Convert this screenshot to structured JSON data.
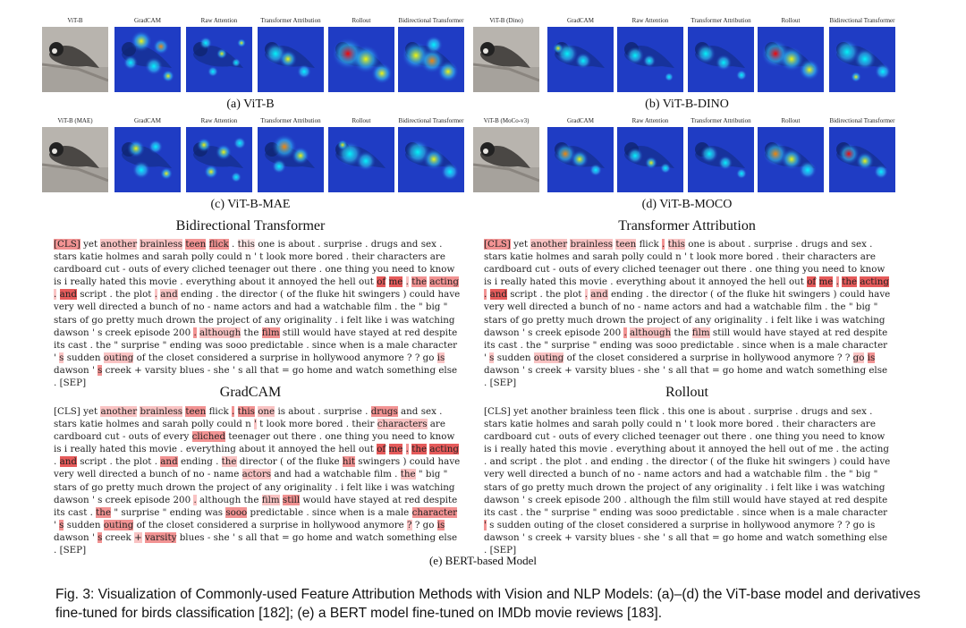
{
  "vision": {
    "vit_b": {
      "titles": [
        "ViT-B",
        "GradCAM",
        "Raw Attention",
        "Transformer Attribution",
        "Rollout",
        "Bidirectional Transformer"
      ],
      "caption": "(a) ViT-B"
    },
    "vit_b_dino": {
      "titles": [
        "ViT-B (Dino)",
        "GradCAM",
        "Raw Attention",
        "Transformer Attribution",
        "Rollout",
        "Bidirectional Transformer"
      ],
      "caption": "(b) ViT-B-DINO"
    },
    "vit_b_mae": {
      "titles": [
        "ViT-B (MAE)",
        "GradCAM",
        "Raw Attention",
        "Transformer Attribution",
        "Rollout",
        "Bidirectional Transformer"
      ],
      "caption": "(c) ViT-B-MAE"
    },
    "vit_b_moco": {
      "titles": [
        "ViT-B (MoCo-v3)",
        "GradCAM",
        "Raw Attention",
        "Transformer Attribution",
        "Rollout",
        "Bidirectional Transformer"
      ],
      "caption": "(d) ViT-B-MOCO"
    }
  },
  "nlp": {
    "bidirectional": {
      "title": "Bidirectional Transformer",
      "text": "[CLS] yet another brainless teen flick . this one is about . surprise . drugs and sex . stars katie holmes and sarah polly could n ' t look more bored . their characters are cardboard cut - outs of every cliched teenager out there . one thing you need to know is i really hated this movie . everything about it annoyed the hell out of me . the acting . and script . the plot . and ending . the director ( of the fluke hit swingers ) could have very well directed a bunch of no - name actors and had a watchable film . the \" big \" stars of go pretty much drown the project of any originality . i felt like i was watching dawson ' s creek episode 200 . although the film still would have stayed at red despite its cast . the \" surprise \" ending was sooo predictable . since when is a male character ' s sudden outing of the closet considered a surprise in hollywood anymore ? ? go is dawson ' s creek + varsity blues - she ' s all that = go home and watch something else . [SEP]"
    },
    "transformer_attribution": {
      "title": "Transformer Attribution",
      "text": "[CLS] yet another brainless teen flick . this one is about . surprise . drugs and sex . stars katie holmes and sarah polly could n ' t look more bored . their characters are cardboard cut - outs of every cliched teenager out there . one thing you need to know is i really hated this movie . everything about it annoyed the hell out of me . the acting . and script . the plot . and ending . the director ( of the fluke hit swingers ) could have very well directed a bunch of no - name actors and had a watchable film . the \" big \" stars of go pretty much drown the project of any originality . i felt like i was watching dawson ' s creek episode 200 . although the film still would have stayed at red despite its cast . the \" surprise \" ending was sooo predictable . since when is a male character ' s sudden outing of the closet considered a surprise in hollywood anymore ? ? go is dawson ' s creek + varsity blues - she ' s all that = go home and watch something else . [SEP]"
    },
    "gradcam": {
      "title": "GradCAM",
      "text": "[CLS] yet another brainless teen flick . this one is about . surprise . drugs and sex . stars katie holmes and sarah polly could n ' t look more bored . their characters are cardboard cut - outs of every cliched teenager out there . one thing you need to know is i really hated this movie . everything about it annoyed the hell out of me . the acting . and script . the plot . and ending . the director ( of the fluke hit swingers ) could have very well directed a bunch of no - name actors and had a watchable film . the \" big \" stars of go pretty much drown the project of any originality . i felt like i was watching dawson ' s creek episode 200 . although the film still would have stayed at red despite its cast . the \" surprise \" ending was sooo predictable . since when is a male character ' s sudden outing of the closet considered a surprise in hollywood anymore ? ? go is dawson ' s creek + varsity blues - she ' s all that = go home and watch something else . [SEP]"
    },
    "rollout": {
      "title": "Rollout",
      "text": "[CLS] yet another brainless teen flick . this one is about . surprise . drugs and sex . stars katie holmes and sarah polly could n ' t look more bored . their characters are cardboard cut - outs of every cliched teenager out there . one thing you need to know is i really hated this movie . everything about it annoyed the hell out of me . the acting . and script . the plot . and ending . the director ( of the fluke hit swingers ) could have very well directed a bunch of no - name actors and had a watchable film . the \" big \" stars of go pretty much drown the project of any originality . i felt like i was watching dawson ' s creek episode 200 . although the film still would have stayed at red despite its cast . the \" surprise \" ending was sooo predictable . since when is a male character ' s sudden outing of the closet considered a surprise in hollywood anymore ? ? go is dawson ' s creek + varsity blues - she ' s all that = go home and watch something else . [SEP]"
    },
    "caption": "(e) BERT-based Model"
  },
  "figure_caption": "Fig. 3: Visualization of Commonly-used Feature Attribution Methods with Vision and NLP Models: (a)–(d) the ViT-base model and derivatives fine-tuned for birds classification [182]; (e) a BERT model fine-tuned on IMDb movie reviews [183]."
}
